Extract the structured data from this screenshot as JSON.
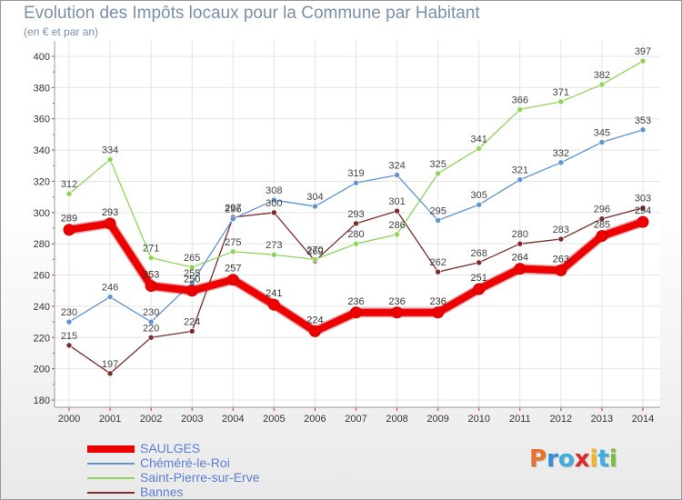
{
  "title": "Evolution des Impôts locaux pour la Commune par Habitant",
  "subtitle": "(en € et par an)",
  "logo": {
    "text": "Proxiti",
    "colors": [
      "#e8742c",
      "#2f8fd8",
      "#3bb0e0",
      "#e02a2a",
      "#f2b51a",
      "#3bb0e0",
      "#7ac142"
    ]
  },
  "chart_data": {
    "type": "line",
    "title": "Evolution des Impôts locaux pour la Commune par Habitant",
    "ylabel": "(en € et par an)",
    "xlabel": "",
    "categories": [
      "2000",
      "2001",
      "2002",
      "2003",
      "2004",
      "2005",
      "2006",
      "2007",
      "2008",
      "2009",
      "2010",
      "2011",
      "2012",
      "2013",
      "2014"
    ],
    "ylim": [
      180,
      400
    ],
    "yticks": [
      "180",
      "200",
      "220",
      "240",
      "260",
      "280",
      "300",
      "320",
      "340",
      "360",
      "380",
      "400"
    ],
    "grid": true,
    "legend": "bottom-left",
    "series": [
      {
        "name": "Bannes",
        "color": "#7a2c2c",
        "width": "thin",
        "values": [
          215,
          197,
          220,
          224,
          297,
          300,
          269,
          293,
          301,
          262,
          268,
          280,
          283,
          296,
          303
        ],
        "labels": [
          "215",
          "197",
          "220",
          "224",
          "297",
          "300",
          "269",
          "293",
          "301",
          "262",
          "268",
          "280",
          "283",
          "296",
          "303"
        ]
      },
      {
        "name": "Saint-Pierre-sur-Erve",
        "color": "#8ed45a",
        "width": "thin",
        "values": [
          312,
          334,
          271,
          265,
          275,
          273,
          270,
          280,
          286,
          325,
          341,
          366,
          371,
          382,
          397
        ],
        "labels": [
          "312",
          "334",
          "271",
          "265",
          "275",
          "273",
          "270",
          "280",
          "286",
          "325",
          "341",
          "366",
          "371",
          "382",
          "397"
        ]
      },
      {
        "name": "Chéméré-le-Roi",
        "color": "#5f94cf",
        "width": "thin",
        "values": [
          230,
          246,
          230,
          255,
          296,
          308,
          304,
          319,
          324,
          295,
          305,
          321,
          332,
          345,
          353
        ],
        "labels": [
          "230",
          "246",
          "230",
          "255",
          "296",
          "308",
          "304",
          "319",
          "324",
          "295",
          "305",
          "321",
          "332",
          "345",
          "353"
        ]
      },
      {
        "name": "SAULGES",
        "color": "#ee0000",
        "width": "thick",
        "values": [
          289,
          293,
          253,
          250,
          257,
          241,
          224,
          236,
          236,
          236,
          251,
          264,
          263,
          285,
          294
        ],
        "labels": [
          "289",
          "293",
          "253",
          "250",
          "257",
          "241",
          "224",
          "236",
          "236",
          "236",
          "251",
          "264",
          "263",
          "285",
          "294"
        ]
      }
    ]
  },
  "legend": [
    {
      "label": "SAULGES",
      "color": "#ee0000",
      "thick": true
    },
    {
      "label": "Chéméré-le-Roi",
      "color": "#5f94cf",
      "thick": false
    },
    {
      "label": "Saint-Pierre-sur-Erve",
      "color": "#8ed45a",
      "thick": false
    },
    {
      "label": "Bannes",
      "color": "#7a2c2c",
      "thick": false
    }
  ]
}
